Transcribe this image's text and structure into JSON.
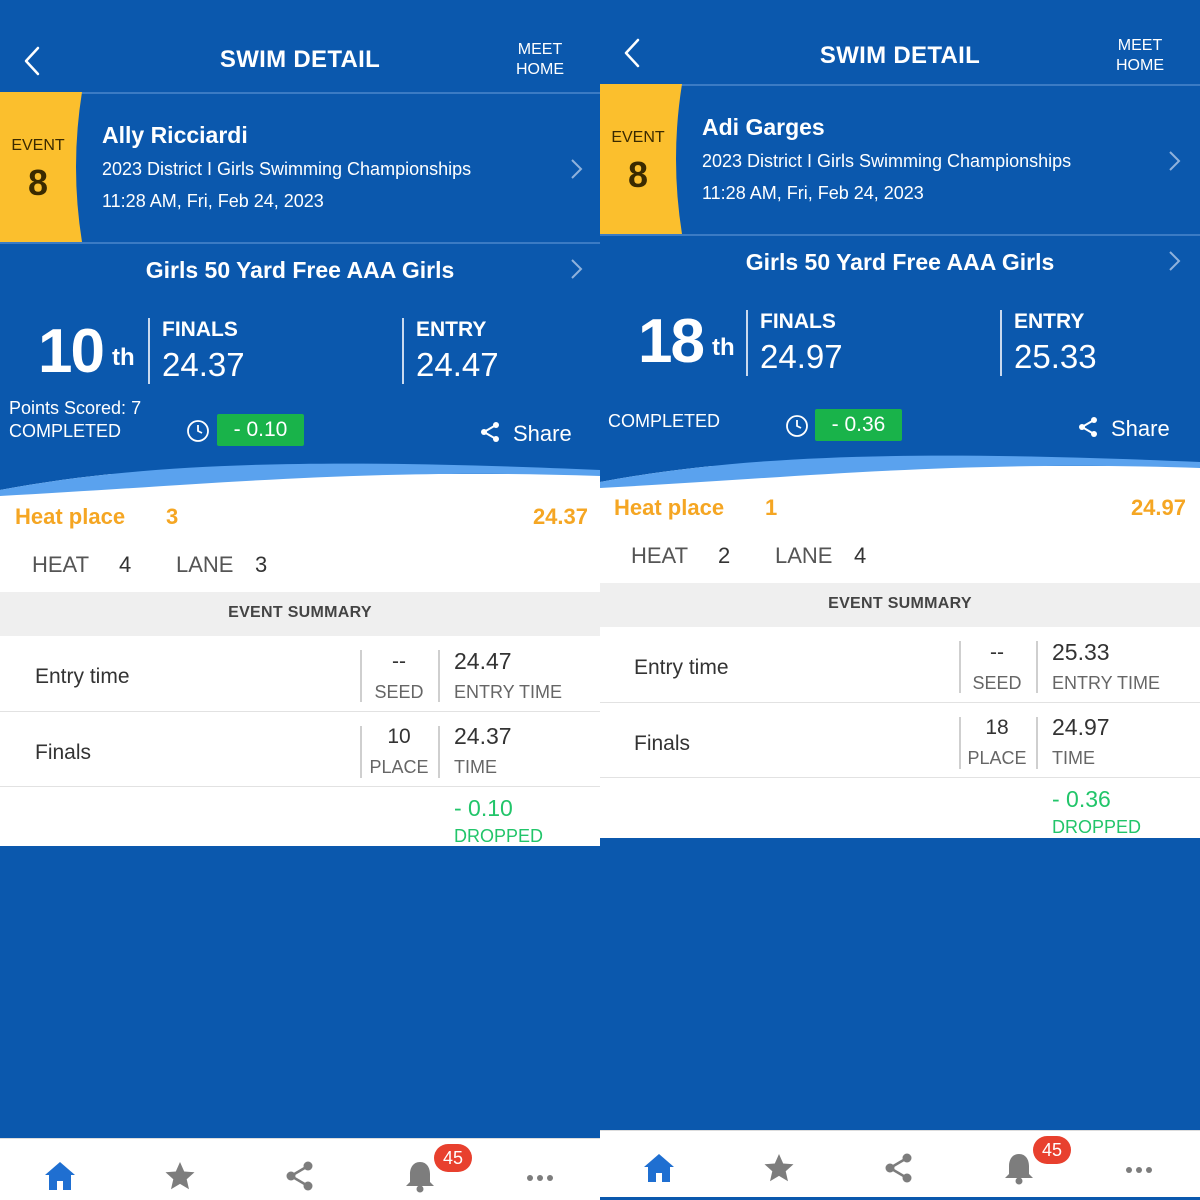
{
  "left": {
    "header": {
      "title": "SWIM DETAIL",
      "meet_home_line1": "MEET",
      "meet_home_line2": "HOME"
    },
    "event": {
      "label": "EVENT",
      "number": "8"
    },
    "swimmer": "Ally Ricciardi",
    "meet_name": "2023 District I Girls Swimming Championships",
    "date": "11:28 AM, Fri, Feb 24, 2023",
    "event_title": "Girls 50 Yard Free AAA Girls",
    "place_num": "10",
    "place_suffix": "th",
    "finals_label": "FINALS",
    "finals_time": "24.37",
    "entry_label": "ENTRY",
    "entry_time": "24.47",
    "points": "Points Scored: 7",
    "status": "COMPLETED",
    "diff": "- 0.10",
    "share": "Share",
    "heat_place_label": "Heat place",
    "heat_place": "3",
    "heat_time": "24.37",
    "heat_label": "HEAT",
    "heat": "4",
    "lane_label": "LANE",
    "lane": "3",
    "summary": "EVENT SUMMARY",
    "rows": {
      "entry_label": "Entry time",
      "seed_val": "--",
      "seed_lbl": "SEED",
      "entry_val": "24.47",
      "entry_lbl": "ENTRY TIME",
      "finals_label": "Finals",
      "place_val": "10",
      "place_lbl": "PLACE",
      "time_val": "24.37",
      "time_lbl": "TIME",
      "drop_val": "- 0.10",
      "drop_lbl": "DROPPED"
    },
    "notifications": "45"
  },
  "right": {
    "header": {
      "title": "SWIM DETAIL",
      "meet_home_line1": "MEET",
      "meet_home_line2": "HOME"
    },
    "event": {
      "label": "EVENT",
      "number": "8"
    },
    "swimmer": "Adi Garges",
    "meet_name": "2023 District I Girls Swimming Championships",
    "date": "11:28 AM, Fri, Feb 24, 2023",
    "event_title": "Girls 50 Yard Free AAA Girls",
    "place_num": "18",
    "place_suffix": "th",
    "finals_label": "FINALS",
    "finals_time": "24.97",
    "entry_label": "ENTRY",
    "entry_time": "25.33",
    "status": "COMPLETED",
    "diff": "- 0.36",
    "share": "Share",
    "heat_place_label": "Heat place",
    "heat_place": "1",
    "heat_time": "24.97",
    "heat_label": "HEAT",
    "heat": "2",
    "lane_label": "LANE",
    "lane": "4",
    "summary": "EVENT SUMMARY",
    "rows": {
      "entry_label": "Entry time",
      "seed_val": "--",
      "seed_lbl": "SEED",
      "entry_val": "25.33",
      "entry_lbl": "ENTRY TIME",
      "finals_label": "Finals",
      "place_val": "18",
      "place_lbl": "PLACE",
      "time_val": "24.97",
      "time_lbl": "TIME",
      "drop_val": "- 0.36",
      "drop_lbl": "DROPPED"
    },
    "notifications": "45"
  },
  "colors": {
    "brand_blue": "#0b58ad",
    "event_badge": "#fbbf2d",
    "heat_orange": "#f5a623",
    "drop_green": "#22c56a",
    "diff_green": "#19b34a",
    "badge_red": "#e8402e",
    "tab_blue": "#1f6fd1"
  },
  "icons": [
    "back-chevron-icon",
    "chevron-right-icon",
    "clock-icon",
    "share-icon",
    "home-icon",
    "star-icon",
    "share-tab-icon",
    "bell-icon",
    "more-icon"
  ]
}
